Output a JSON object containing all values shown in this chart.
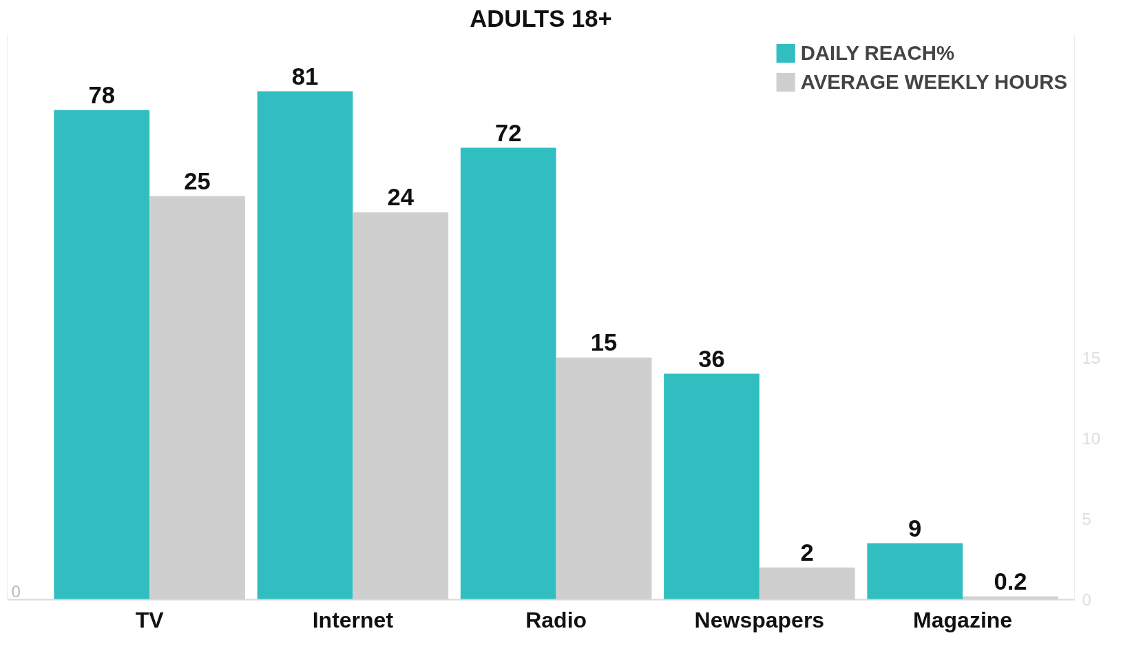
{
  "chart_data": {
    "type": "bar",
    "title": "ADULTS 18+",
    "categories": [
      "TV",
      "Internet",
      "Radio",
      "Newspapers",
      "Magazine"
    ],
    "series": [
      {
        "name": "DAILY REACH%",
        "color": "#31bec0",
        "values": [
          78,
          81,
          72,
          36,
          9
        ]
      },
      {
        "name": "AVERAGE WEEKLY HOURS",
        "color": "#d0cfd0",
        "values": [
          25,
          24,
          15,
          2,
          0.2
        ],
        "axis": "y2"
      }
    ],
    "ylim": [
      0,
      90
    ],
    "annotations": [
      "0"
    ],
    "y2lim": [
      0,
      35
    ],
    "y2ticks": [
      0,
      5,
      10,
      15
    ],
    "data_labels": true,
    "grid": false,
    "legend": "top right"
  }
}
